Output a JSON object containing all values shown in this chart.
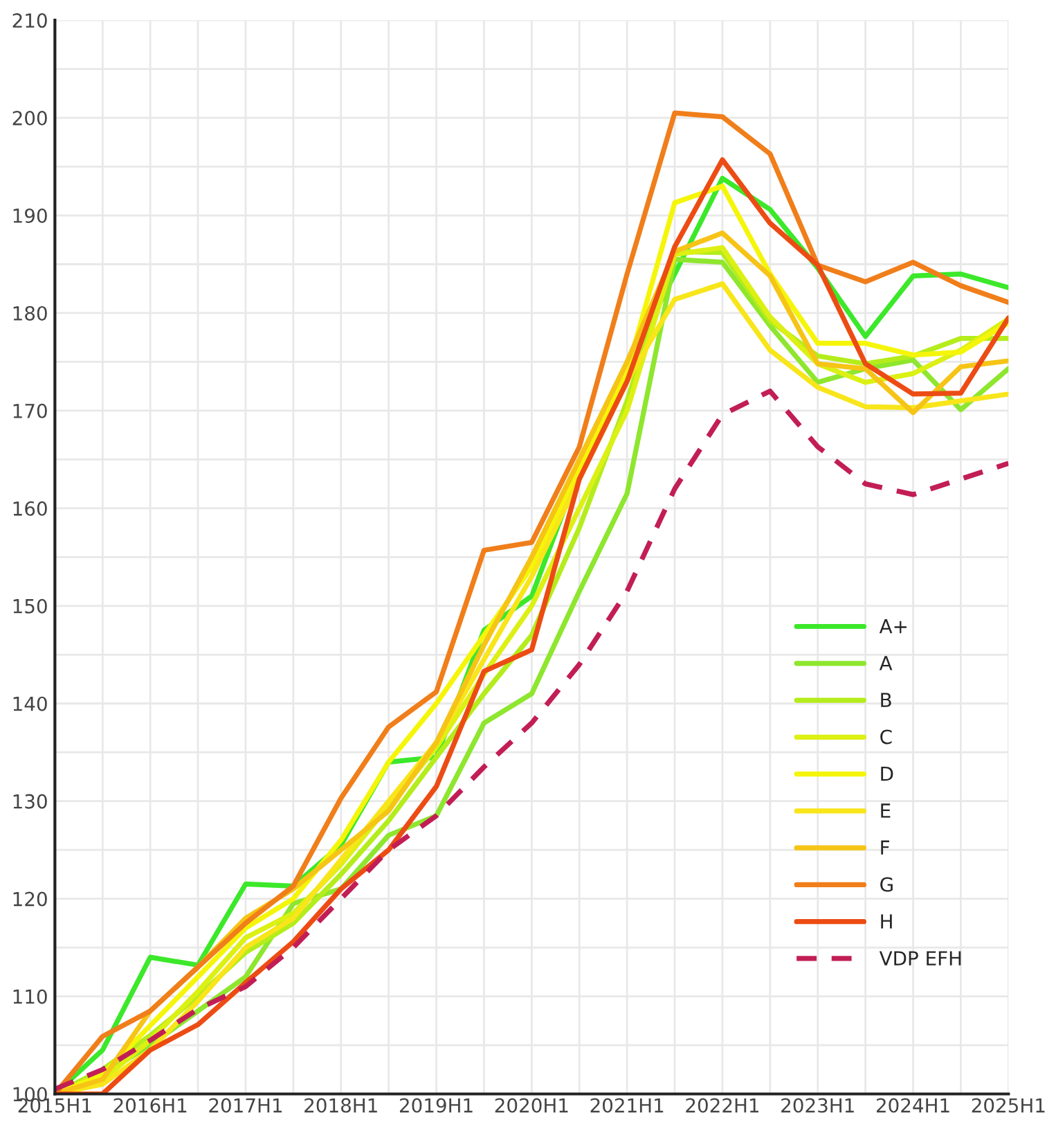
{
  "chart_data": {
    "type": "line",
    "categories": [
      "2015H1",
      null,
      "2016H1",
      null,
      "2017H1",
      null,
      "2018H1",
      null,
      "2019H1",
      null,
      "2020H1",
      null,
      "2021H1",
      null,
      "2022H1",
      null,
      "2023H1",
      null,
      "2024H1",
      null,
      "2025H1"
    ],
    "series": [
      {
        "name": "A+",
        "color": "#3ce82a",
        "values": [
          100,
          104.5,
          114,
          113.2,
          121.5,
          121.3,
          125.5,
          134,
          134.5,
          147.5,
          151,
          164,
          174.5,
          184,
          193.8,
          190.6,
          184.6,
          177.6,
          183.8,
          184,
          182.6
        ]
      },
      {
        "name": "A",
        "color": "#8ee62e",
        "values": [
          100,
          102,
          105,
          108.5,
          112,
          119.5,
          121,
          126.5,
          128.5,
          138,
          141,
          151.5,
          161.5,
          185.5,
          185.2,
          178.7,
          172.9,
          174.3,
          175.2,
          170.1,
          174.3
        ]
      },
      {
        "name": "B",
        "color": "#b4ec1c",
        "values": [
          100,
          102.5,
          106,
          110,
          114.5,
          117.5,
          122.5,
          128,
          134.5,
          141,
          147,
          158,
          171,
          186.3,
          186.2,
          179.2,
          175.6,
          174.8,
          175.6,
          177.4,
          177.4
        ]
      },
      {
        "name": "C",
        "color": "#dcf014",
        "values": [
          100,
          101.5,
          105.5,
          110.5,
          116,
          118.5,
          123.5,
          129.5,
          135.5,
          143,
          150,
          160,
          170,
          186,
          186.7,
          179.6,
          174.8,
          172.9,
          173.8,
          176.2,
          179.4
        ]
      },
      {
        "name": "D",
        "color": "#f5f50a",
        "values": [
          100,
          102,
          107,
          112,
          117,
          120,
          126,
          134,
          140,
          147,
          154,
          164,
          174,
          191.3,
          193,
          184,
          176.9,
          176.9,
          175.7,
          176,
          179
        ]
      },
      {
        "name": "E",
        "color": "#f8e51a",
        "values": [
          100,
          101,
          104.5,
          109.5,
          115,
          118,
          124,
          130,
          136,
          144.5,
          153,
          163,
          173,
          181.4,
          183,
          176.2,
          172.4,
          170.4,
          170.3,
          171,
          171.7
        ]
      },
      {
        "name": "F",
        "color": "#f6c416",
        "values": [
          100,
          101.5,
          108.5,
          113,
          118,
          121,
          125,
          129,
          136,
          146,
          155,
          165,
          175,
          186.3,
          188.2,
          183.8,
          174.8,
          174.3,
          169.8,
          174.5,
          175.1
        ]
      },
      {
        "name": "G",
        "color": "#f07e1a",
        "values": [
          100,
          105.9,
          108.5,
          113,
          117.5,
          121.3,
          130.3,
          137.6,
          141.2,
          155.7,
          156.5,
          166.3,
          184,
          200.5,
          200.1,
          196.3,
          184.9,
          183.2,
          185.2,
          182.8,
          181.1
        ]
      },
      {
        "name": "H",
        "color": "#ec4c14",
        "values": [
          100,
          100,
          104.5,
          107.1,
          111.4,
          115.6,
          121,
          125,
          131.5,
          143.3,
          145.5,
          163,
          173,
          186.8,
          195.7,
          189.2,
          184.9,
          174.8,
          171.7,
          171.8,
          179.5
        ]
      },
      {
        "name": "VDP EFH",
        "color": "#c21e56",
        "line_style": "dashed",
        "values": [
          100.5,
          102.5,
          105.5,
          108.7,
          111,
          115,
          120,
          125,
          128.5,
          133.5,
          138,
          144,
          151.5,
          162,
          169.6,
          172,
          166.3,
          162.5,
          161.4,
          163,
          164.6
        ]
      }
    ],
    "ylim": [
      100,
      210
    ],
    "yticks": [
      100,
      {
        "value": 105,
        "label": null
      },
      110,
      {
        "value": 115,
        "label": null
      },
      120,
      {
        "value": 125,
        "label": null
      },
      130,
      {
        "value": 135,
        "label": null
      },
      140,
      {
        "value": 145,
        "label": null
      },
      150,
      {
        "value": 155,
        "label": null
      },
      160,
      {
        "value": 165,
        "label": null
      },
      170,
      {
        "value": 175,
        "label": null
      },
      180,
      {
        "value": 185,
        "label": null
      },
      190,
      {
        "value": 195,
        "label": null
      },
      200,
      {
        "value": 205,
        "label": null
      },
      210
    ],
    "grid": true,
    "legend": "bottom right",
    "line_style": "solid",
    "marker": "none"
  }
}
